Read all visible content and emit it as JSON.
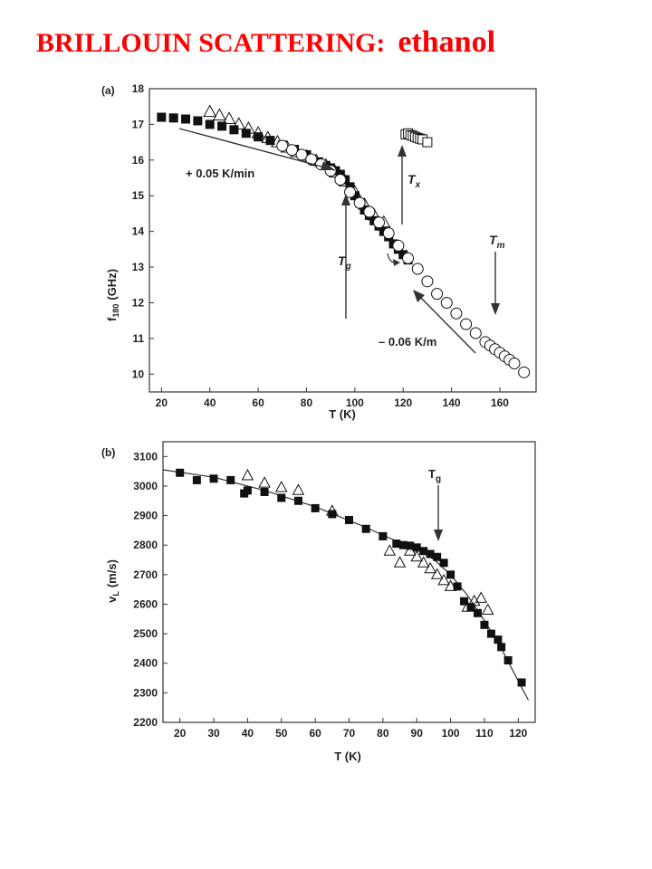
{
  "slide": {
    "title_main": "BRILLOUIN SCATTERING:",
    "title_sub": "ethanol"
  },
  "chart_data": [
    {
      "type": "scatter",
      "panel_label": "(a)",
      "xlabel": "T (K)",
      "ylabel": "f",
      "ylabel_sub": "180",
      "ylabel_unit": "(GHz)",
      "xlim": [
        15,
        175
      ],
      "ylim": [
        9.5,
        18
      ],
      "xticks": [
        "20",
        "40",
        "60",
        "80",
        "100",
        "120",
        "140",
        "160"
      ],
      "yticks": [
        "10",
        "11",
        "12",
        "13",
        "14",
        "15",
        "16",
        "17",
        "18"
      ],
      "grid": false,
      "series": [
        {
          "marker": "filled-square",
          "x": [
            20,
            25,
            30,
            35,
            40,
            45,
            50,
            55,
            60,
            65,
            70,
            75,
            80,
            85,
            88,
            90,
            92,
            94,
            96,
            98,
            100,
            102,
            104,
            106,
            108,
            110,
            112,
            114,
            116,
            118,
            120,
            122
          ],
          "y": [
            17.2,
            17.18,
            17.15,
            17.1,
            17.0,
            16.95,
            16.85,
            16.75,
            16.65,
            16.55,
            16.42,
            16.3,
            16.15,
            15.95,
            15.85,
            15.78,
            15.7,
            15.6,
            15.45,
            15.25,
            15.0,
            14.8,
            14.6,
            14.45,
            14.3,
            14.15,
            14.0,
            13.85,
            13.65,
            13.5,
            13.35,
            13.2
          ]
        },
        {
          "marker": "open-triangle",
          "x": [
            40,
            44,
            48,
            52,
            56,
            60,
            64,
            68,
            72,
            76,
            80,
            84,
            88,
            92,
            96,
            100,
            104,
            108,
            112
          ],
          "y": [
            17.35,
            17.25,
            17.15,
            17.0,
            16.88,
            16.75,
            16.62,
            16.5,
            16.35,
            16.22,
            16.1,
            15.98,
            15.85,
            15.65,
            15.4,
            15.1,
            14.75,
            14.45,
            14.25
          ]
        },
        {
          "marker": "open-circle",
          "x": [
            70,
            74,
            78,
            82,
            86,
            90,
            94,
            98,
            102,
            106,
            110,
            114,
            118,
            122,
            126,
            130,
            134,
            138,
            142,
            146,
            150,
            154,
            156,
            158,
            160,
            162,
            164,
            166,
            170
          ],
          "y": [
            16.4,
            16.28,
            16.15,
            16.02,
            15.88,
            15.7,
            15.45,
            15.1,
            14.8,
            14.55,
            14.25,
            13.95,
            13.6,
            13.25,
            12.95,
            12.6,
            12.25,
            12.0,
            11.7,
            11.4,
            11.15,
            10.9,
            10.8,
            10.7,
            10.6,
            10.5,
            10.4,
            10.3,
            10.05
          ]
        },
        {
          "marker": "open-square",
          "x": [
            121,
            122,
            123,
            124,
            125,
            126,
            127,
            128,
            130
          ],
          "y": [
            16.72,
            16.75,
            16.7,
            16.68,
            16.65,
            16.62,
            16.6,
            16.58,
            16.5
          ]
        }
      ],
      "annotations": [
        {
          "text": "+ 0.05 K/min"
        },
        {
          "text": "T",
          "sub": "g"
        },
        {
          "text": "T",
          "sub": "x"
        },
        {
          "text": "T",
          "sub": "m"
        },
        {
          "text": "– 0.06 K/m"
        }
      ]
    },
    {
      "type": "scatter",
      "panel_label": "(b)",
      "xlabel": "T (K)",
      "ylabel": "v",
      "ylabel_sub": "L",
      "ylabel_unit": "(m/s)",
      "xlim": [
        15,
        125
      ],
      "ylim": [
        2200,
        3150
      ],
      "xticks": [
        "20",
        "30",
        "40",
        "50",
        "60",
        "70",
        "80",
        "90",
        "100",
        "110",
        "120"
      ],
      "yticks": [
        "2200",
        "2300",
        "2400",
        "2500",
        "2600",
        "2700",
        "2800",
        "2900",
        "3000",
        "3100"
      ],
      "grid": false,
      "series": [
        {
          "marker": "filled-square",
          "x": [
            20,
            25,
            30,
            35,
            39,
            40,
            45,
            50,
            55,
            60,
            65,
            70,
            75,
            80,
            84,
            86,
            88,
            90,
            92,
            94,
            96,
            98,
            100,
            102,
            104,
            106,
            108,
            110,
            112,
            114,
            115,
            117,
            121
          ],
          "y": [
            3045,
            3020,
            3025,
            3020,
            2975,
            2985,
            2980,
            2960,
            2950,
            2925,
            2905,
            2885,
            2855,
            2830,
            2805,
            2800,
            2798,
            2792,
            2780,
            2770,
            2760,
            2740,
            2700,
            2660,
            2610,
            2590,
            2570,
            2530,
            2500,
            2480,
            2455,
            2410,
            2335
          ]
        },
        {
          "marker": "open-triangle",
          "x": [
            40,
            45,
            50,
            55,
            65,
            82,
            85,
            88,
            90,
            92,
            94,
            96,
            98,
            100,
            105,
            107,
            109,
            111
          ],
          "y": [
            3035,
            3010,
            2995,
            2985,
            2915,
            2780,
            2740,
            2780,
            2760,
            2740,
            2720,
            2700,
            2680,
            2660,
            2590,
            2610,
            2620,
            2580
          ]
        }
      ],
      "fit_line": {
        "x": [
          15,
          30,
          45,
          60,
          75,
          85,
          90,
          95,
          100,
          105,
          110,
          115,
          120,
          123
        ],
        "y": [
          3055,
          3030,
          2985,
          2930,
          2860,
          2808,
          2785,
          2752,
          2700,
          2630,
          2545,
          2450,
          2340,
          2275
        ]
      },
      "annotations": [
        {
          "text": "T",
          "sub": "g"
        }
      ]
    }
  ]
}
